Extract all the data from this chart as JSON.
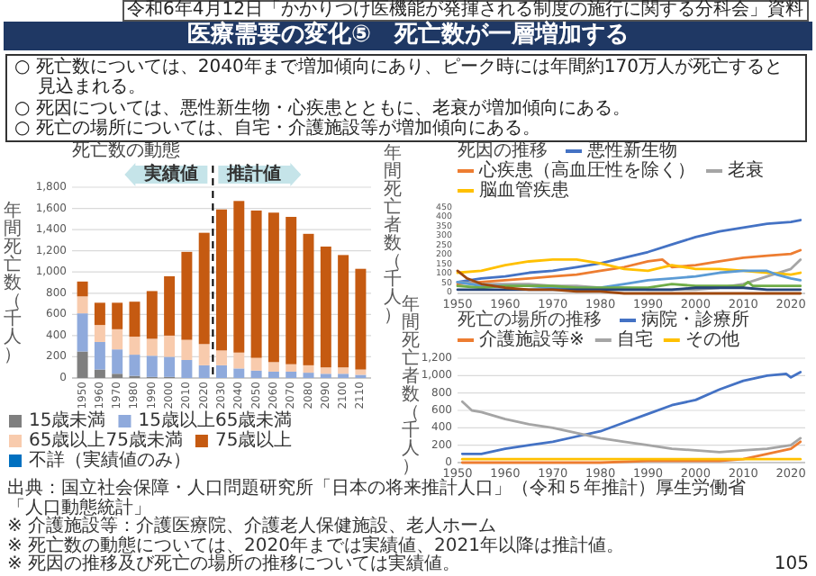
{
  "chart_data": [
    {
      "type": "other",
      "subtitle": "令和6年4月12日「かかりつけ医機能が発揮される制度の施行に関する分科会」資料",
      "title": "医療需要の変化⑤　死亡数が一層増加する",
      "annotations": [
        "○ 死亡数については、2040年まで増加傾向にあり、ピーク時には年間約170万人が死亡すると見込まれる。",
        "○ 死因については、悪性新生物・心疾患とともに、老衰が増加傾向にある。",
        "○ 死亡の場所については、自宅・介護施設等が増加傾向にある。",
        "105"
      ]
    },
    {
      "type": "bar",
      "title": "死亡数の動態",
      "ylabel": "年間死亡数（千人）",
      "stacked": true,
      "grid": "y",
      "legend": "bottom",
      "x": [
        1950,
        1960,
        1970,
        1980,
        1990,
        2000,
        2010,
        2020,
        2030,
        2040,
        2050,
        2060,
        2070,
        2080,
        2090,
        2100,
        2110
      ],
      "xlim": [
        1944,
        2116
      ],
      "xticks": [
        1950,
        1960,
        1970,
        1980,
        1990,
        2000,
        2010,
        2020,
        2030,
        2040,
        2050,
        2060,
        2070,
        2080,
        2090,
        2100,
        2110
      ],
      "ylim": [
        0,
        1800
      ],
      "yticks": [
        0,
        200,
        400,
        600,
        800,
        {
          "value": 1000,
          "label": "1,000"
        },
        {
          "value": 1200,
          "label": "1,200"
        },
        {
          "value": 1400,
          "label": "1,400"
        },
        {
          "value": 1600,
          "label": "1,600"
        },
        {
          "value": 1800,
          "label": "1,800"
        }
      ],
      "ref_lines": [
        {
          "axis": "x",
          "value": 2025,
          "color": "#000000",
          "line_style": "dashed"
        }
      ],
      "annotations": [
        "実績値",
        "推計値",
        "出典：国立社会保障・人口問題研究所「日本の将来推計人口」（令和５年推計）厚生労働省「人口動態統計」",
        "※ 介護施設等：介護医療院、介護老人保健施設、老人ホーム",
        "※ 死亡数の動態については、2020年までは実績値、2021年以降は推計値。",
        "※ 死因の推移及び死亡の場所の推移については実績値。"
      ],
      "series": [
        {
          "name": "15歳未満",
          "color": "#7f7f7f",
          "values": [
            250,
            80,
            40,
            20,
            10,
            10,
            0,
            0,
            0,
            0,
            0,
            0,
            0,
            0,
            0,
            0,
            0
          ]
        },
        {
          "name": "15歳以上65歳未満",
          "color": "#8faadc",
          "values": [
            360,
            260,
            230,
            200,
            200,
            190,
            170,
            120,
            120,
            90,
            70,
            60,
            60,
            50,
            40,
            40,
            30
          ]
        },
        {
          "name": "65歳以上75歳未満",
          "color": "#f8cbad",
          "values": [
            160,
            160,
            190,
            170,
            160,
            200,
            190,
            200,
            140,
            150,
            120,
            90,
            70,
            70,
            60,
            60,
            50
          ]
        },
        {
          "name": "75歳以上",
          "color": "#c55a11",
          "values": [
            140,
            210,
            250,
            330,
            450,
            560,
            830,
            1050,
            1330,
            1430,
            1390,
            1410,
            1390,
            1240,
            1140,
            1060,
            950
          ]
        },
        {
          "name": "不詳（実績値のみ）",
          "color": "#0070c0",
          "values": [
            0,
            0,
            0,
            0,
            0,
            0,
            0,
            0,
            null,
            null,
            null,
            null,
            null,
            null,
            null,
            null,
            null
          ]
        }
      ]
    },
    {
      "type": "line",
      "title": "死因の推移",
      "ylabel": "年間死亡者数（千人）",
      "legend": "top",
      "xlim": [
        1950,
        2023
      ],
      "xticks": [
        1950,
        1960,
        1970,
        1980,
        1990,
        2000,
        2010,
        2020
      ],
      "ylim": [
        0,
        450
      ],
      "yticks": [
        0,
        50,
        100,
        150,
        200,
        250,
        300,
        350,
        400,
        450
      ],
      "series": [
        {
          "name": "悪性新生物",
          "color": "#4472c4",
          "x": [
            1950,
            1955,
            1960,
            1965,
            1970,
            1975,
            1980,
            1985,
            1990,
            1995,
            2000,
            2005,
            2010,
            2015,
            2020,
            2022
          ],
          "values": [
            60,
            80,
            90,
            110,
            120,
            140,
            160,
            190,
            220,
            260,
            300,
            330,
            350,
            370,
            380,
            390
          ]
        },
        {
          "name": "心疾患（高血圧性を除く）",
          "color": "#ed7d31",
          "x": [
            1950,
            1955,
            1960,
            1965,
            1970,
            1975,
            1980,
            1985,
            1990,
            1993,
            1995,
            2000,
            2005,
            2010,
            2015,
            2020,
            2022
          ],
          "values": [
            50,
            60,
            70,
            80,
            90,
            100,
            120,
            140,
            170,
            180,
            140,
            150,
            170,
            190,
            200,
            210,
            230
          ]
        },
        {
          "name": "老衰",
          "color": "#a5a5a5",
          "x": [
            1950,
            1955,
            1960,
            1965,
            1970,
            1975,
            1980,
            1985,
            1990,
            1995,
            2000,
            2005,
            2010,
            2015,
            2020,
            2022
          ],
          "values": [
            60,
            50,
            50,
            50,
            40,
            40,
            30,
            30,
            20,
            20,
            20,
            30,
            50,
            90,
            130,
            180
          ]
        },
        {
          "name": "脳血管疾患",
          "color": "#ffc000",
          "x": [
            1950,
            1955,
            1960,
            1965,
            1970,
            1975,
            1980,
            1985,
            1990,
            1995,
            2000,
            2005,
            2010,
            2015,
            2020,
            2022
          ],
          "values": [
            110,
            120,
            150,
            170,
            180,
            180,
            160,
            130,
            120,
            150,
            130,
            130,
            120,
            110,
            100,
            110
          ]
        },
        {
          "color": "#5b9bd5",
          "x": [
            1950,
            1955,
            1960,
            1965,
            1970,
            1975,
            1980,
            1985,
            1990,
            1995,
            2000,
            2005,
            2010,
            2015,
            2017,
            2020,
            2022
          ],
          "values": [
            60,
            40,
            40,
            40,
            30,
            30,
            30,
            50,
            70,
            80,
            90,
            110,
            120,
            120,
            100,
            80,
            70
          ]
        },
        {
          "color": "#70ad47",
          "x": [
            1950,
            1955,
            1960,
            1965,
            1970,
            1975,
            1980,
            1985,
            1990,
            1995,
            2000,
            2005,
            2010,
            2011,
            2012,
            2015,
            2020,
            2022
          ],
          "values": [
            40,
            30,
            40,
            40,
            40,
            30,
            30,
            30,
            30,
            50,
            40,
            40,
            40,
            60,
            40,
            40,
            40,
            40
          ]
        },
        {
          "color": "#264478",
          "x": [
            1950,
            1955,
            1960,
            1965,
            1970,
            1975,
            1980,
            1985,
            1990,
            1995,
            2000,
            2005,
            2010,
            2015,
            2020,
            2022
          ],
          "values": [
            20,
            20,
            20,
            20,
            20,
            20,
            20,
            20,
            20,
            20,
            30,
            30,
            30,
            20,
            20,
            20
          ]
        },
        {
          "color": "#9e480e",
          "x": [
            1950,
            1952,
            1955,
            1960,
            1965,
            1970,
            1975,
            1980,
            1985,
            1990,
            2000,
            2010,
            2022
          ],
          "values": [
            120,
            80,
            50,
            30,
            20,
            20,
            10,
            10,
            0,
            0,
            0,
            0,
            0
          ]
        }
      ]
    },
    {
      "type": "line",
      "title": "死亡の場所の推移",
      "ylabel": "年間死亡者数（千人）",
      "legend": "top",
      "grid": "y",
      "xlim": [
        1950,
        2023
      ],
      "xticks": [
        1950,
        1960,
        1970,
        1980,
        1990,
        2000,
        2010,
        2020
      ],
      "ylim": [
        0,
        1200
      ],
      "yticks": [
        0,
        200,
        400,
        600,
        800,
        {
          "value": 1000,
          "label": "1,000"
        },
        {
          "value": 1200,
          "label": "1,200"
        }
      ],
      "series": [
        {
          "name": "病院・診療所",
          "color": "#4472c4",
          "x": [
            1951,
            1955,
            1960,
            1965,
            1970,
            1975,
            1980,
            1985,
            1990,
            1995,
            2000,
            2005,
            2010,
            2015,
            2019,
            2020,
            2022
          ],
          "values": [
            100,
            100,
            160,
            200,
            240,
            300,
            360,
            460,
            560,
            660,
            720,
            840,
            940,
            1000,
            1020,
            980,
            1040
          ]
        },
        {
          "name": "介護施設等※",
          "color": "#ed7d31",
          "x": [
            1951,
            1960,
            1970,
            1980,
            1990,
            2000,
            2005,
            2010,
            2015,
            2020,
            2022
          ],
          "values": [
            0,
            0,
            0,
            0,
            20,
            20,
            20,
            40,
            100,
            160,
            240
          ]
        },
        {
          "name": "自宅",
          "color": "#a5a5a5",
          "x": [
            1951,
            1953,
            1955,
            1960,
            1965,
            1970,
            1975,
            1980,
            1985,
            1990,
            1995,
            2000,
            2005,
            2010,
            2015,
            2020,
            2022
          ],
          "values": [
            700,
            600,
            580,
            500,
            440,
            400,
            340,
            280,
            240,
            200,
            160,
            140,
            120,
            140,
            160,
            200,
            280
          ]
        },
        {
          "name": "その他",
          "color": "#ffc000",
          "x": [
            1951,
            1960,
            1970,
            1980,
            1990,
            2000,
            2010,
            2015,
            2020,
            2022
          ],
          "values": [
            40,
            40,
            40,
            40,
            40,
            40,
            40,
            40,
            40,
            40
          ]
        }
      ]
    }
  ]
}
